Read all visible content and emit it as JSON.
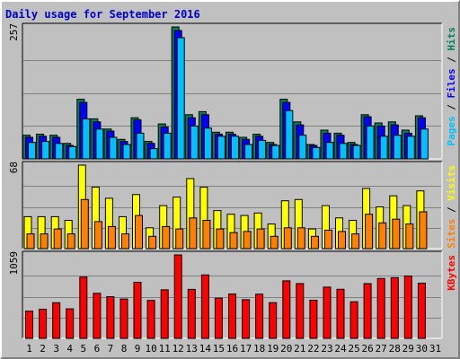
{
  "chart_data": {
    "title": "Daily usage for September 2016",
    "type": "bar",
    "categories": [
      "1",
      "2",
      "3",
      "4",
      "5",
      "6",
      "7",
      "8",
      "9",
      "10",
      "11",
      "12",
      "13",
      "14",
      "15",
      "16",
      "17",
      "18",
      "19",
      "20",
      "21",
      "22",
      "23",
      "24",
      "25",
      "26",
      "27",
      "28",
      "29",
      "30",
      "31"
    ],
    "weekend_days": [
      "3",
      "4",
      "10",
      "11",
      "17",
      "18",
      "24",
      "25",
      "31"
    ],
    "colors": {
      "hits": "#00805c",
      "files": "#0000ff",
      "pages": "#00c0ff",
      "visits": "#ffff00",
      "sites": "#ff8000",
      "kbytes": "#ff0000",
      "title": "#0000cc",
      "weekday_label": "#000000",
      "weekend_label": "#00805c"
    },
    "panels": [
      {
        "id": "hits-files-pages",
        "ymax": 257,
        "ymax_label": "257",
        "legend": [
          {
            "text": "Pages",
            "color": "#00c0ff"
          },
          {
            "text": "Files",
            "color": "#0000ff"
          },
          {
            "text": "Hits",
            "color": "#00805c"
          }
        ],
        "series": [
          {
            "name": "Hits",
            "color": "#00805c",
            "values": [
              46,
              48,
              46,
              30,
              116,
              78,
              58,
              38,
              80,
              34,
              68,
              257,
              86,
              92,
              52,
              52,
              42,
              48,
              32,
              116,
              72,
              28,
              56,
              50,
              32,
              86,
              70,
              72,
              56,
              84,
              0
            ]
          },
          {
            "name": "Files",
            "color": "#0000ff",
            "values": [
              42,
              44,
              42,
              26,
              110,
              72,
              54,
              34,
              76,
              30,
              62,
              250,
              80,
              86,
              48,
              48,
              38,
              44,
              28,
              110,
              66,
              26,
              50,
              46,
              28,
              82,
              64,
              66,
              50,
              80,
              0
            ]
          },
          {
            "name": "Pages",
            "color": "#00c0ff",
            "values": [
              32,
              34,
              30,
              24,
              78,
              58,
              42,
              28,
              50,
              20,
              50,
              236,
              64,
              60,
              44,
              44,
              28,
              36,
              26,
              94,
              46,
              22,
              32,
              30,
              26,
              64,
              44,
              46,
              44,
              58,
              0
            ]
          }
        ]
      },
      {
        "id": "visits-sites",
        "ymax": 68,
        "ymax_label": "68",
        "legend": [
          {
            "text": "Sites",
            "color": "#ff8000"
          },
          {
            "text": "Visits",
            "color": "#ffff00"
          }
        ],
        "series": [
          {
            "name": "Visits",
            "color": "#ffff00",
            "values": [
              26,
              26,
              26,
              23,
              68,
              50,
              41,
              26,
              44,
              17,
              35,
              42,
              57,
              50,
              31,
              28,
              27,
              29,
              20,
              39,
              40,
              16,
              35,
              25,
              23,
              49,
              34,
              43,
              35,
              47,
              0
            ]
          },
          {
            "name": "Sites",
            "color": "#ff8000",
            "values": [
              12,
              12,
              16,
              12,
              40,
              22,
              18,
              12,
              27,
              10,
              18,
              16,
              25,
              23,
              16,
              13,
              14,
              16,
              10,
              17,
              17,
              10,
              15,
              14,
              12,
              28,
              21,
              24,
              20,
              30,
              0
            ]
          }
        ]
      },
      {
        "id": "kbytes",
        "ymax": 1059,
        "ymax_label": "1059",
        "legend": [
          {
            "text": "KBytes",
            "color": "#ff0000"
          }
        ],
        "series": [
          {
            "name": "KBytes",
            "color": "#ff0000",
            "values": [
              345,
              370,
              452,
              375,
              778,
              572,
              528,
              500,
              712,
              482,
              616,
              1059,
              622,
              805,
              510,
              563,
              491,
              560,
              453,
              730,
              695,
              484,
              650,
              623,
              465,
              695,
              760,
              770,
              790,
              700,
              0
            ]
          }
        ]
      }
    ]
  }
}
